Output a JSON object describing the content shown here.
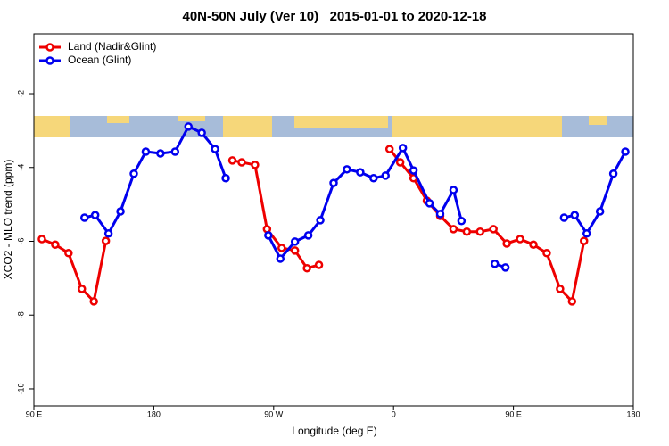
{
  "chart_data": {
    "type": "line",
    "title": "40N-50N July (Ver 10)   2015-01-01 to 2020-12-18",
    "x_label": "Longitude (deg E)",
    "y_label": "XCO2 - MLO trend (ppm)",
    "xlim": [
      90,
      540
    ],
    "ylim": [
      -10.46,
      -0.38
    ],
    "xticks": [
      {
        "value": 90,
        "label": "90 E"
      },
      180,
      {
        "value": 270,
        "label": "90 W"
      },
      {
        "value": 360,
        "label": "0"
      },
      {
        "value": 450,
        "label": "90 E"
      },
      {
        "value": 540,
        "label": "180"
      }
    ],
    "yticks": [
      -2,
      -4,
      -6,
      -8,
      -10
    ],
    "legend": "topleft",
    "series": [
      {
        "name": "Land (Nadir&Glint)",
        "color": "#ee0000",
        "x": [
          96,
          106,
          116,
          126,
          135,
          144,
          null,
          239,
          246,
          256,
          265,
          276,
          286,
          295,
          304,
          null,
          357,
          365,
          375,
          385,
          395,
          405,
          415,
          425,
          435,
          445,
          455,
          465,
          475,
          485,
          494,
          503
        ],
        "values": [
          -5.94,
          -6.09,
          -6.32,
          -7.29,
          -7.63,
          -5.99,
          null,
          -3.81,
          -3.86,
          -3.93,
          -5.67,
          -6.18,
          -6.25,
          -6.73,
          -6.64,
          null,
          -3.5,
          -3.86,
          -4.29,
          -4.9,
          -5.31,
          -5.67,
          -5.74,
          -5.74,
          -5.67,
          -6.06,
          -5.94,
          -6.09,
          -6.32,
          -7.29,
          -7.63,
          -5.99
        ]
      },
      {
        "name": "Ocean (Glint)",
        "color": "#0000ee",
        "x": [
          128,
          136,
          146,
          155,
          165,
          174,
          185,
          196,
          206,
          216,
          226,
          234,
          null,
          266,
          275,
          286,
          296,
          305,
          315,
          325,
          335,
          345,
          354,
          367,
          375,
          387,
          395,
          405,
          411,
          null,
          436,
          444,
          null,
          488,
          496,
          505,
          515,
          525,
          534
        ],
        "values": [
          -5.36,
          -5.29,
          -5.79,
          -5.19,
          -4.17,
          -3.57,
          -3.62,
          -3.57,
          -2.89,
          -3.06,
          -3.5,
          -4.29,
          null,
          -5.84,
          -6.47,
          -6.01,
          -5.84,
          -5.43,
          -4.42,
          -4.05,
          -4.13,
          -4.29,
          -4.22,
          -3.47,
          -4.08,
          -4.97,
          -5.26,
          -4.61,
          -5.45,
          null,
          -6.61,
          -6.71,
          null,
          -5.36,
          -5.29,
          -5.79,
          -5.19,
          -4.17,
          -3.57
        ]
      }
    ]
  }
}
